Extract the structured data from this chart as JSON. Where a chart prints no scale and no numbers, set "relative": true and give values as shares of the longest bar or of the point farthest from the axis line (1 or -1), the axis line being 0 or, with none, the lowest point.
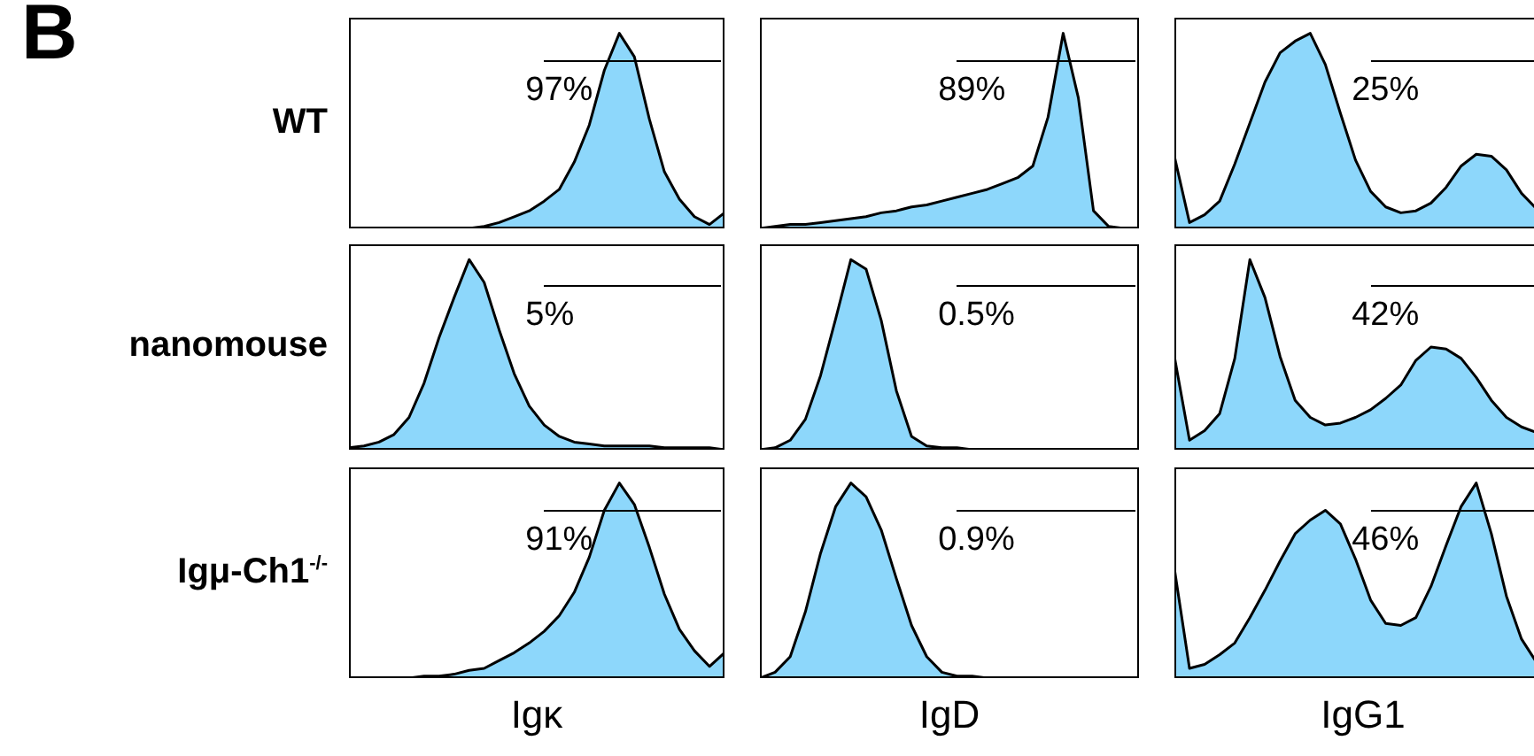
{
  "chart_data": [
    {
      "type": "area",
      "title": "B",
      "ylabel": "WT",
      "annotations": [
        "97%"
      ],
      "relative": true,
      "color": "#8dd7fb",
      "categories": [
        null,
        null,
        null,
        null,
        null,
        null,
        null,
        null,
        null,
        null,
        null,
        null,
        null,
        null,
        null,
        null,
        null,
        null,
        null,
        null,
        null,
        null,
        null,
        null,
        null,
        null
      ],
      "values": [
        0,
        0,
        0,
        0,
        0,
        0,
        0,
        0,
        0,
        0.01,
        0.03,
        0.06,
        0.09,
        0.14,
        0.2,
        0.34,
        0.53,
        0.81,
        1,
        0.88,
        0.56,
        0.29,
        0.15,
        0.06,
        0.02,
        0.08
      ]
    },
    {
      "type": "area",
      "annotations": [
        "89%"
      ],
      "relative": true,
      "color": "#8dd7fb",
      "categories": [
        null,
        null,
        null,
        null,
        null,
        null,
        null,
        null,
        null,
        null,
        null,
        null,
        null,
        null,
        null,
        null,
        null,
        null,
        null,
        null,
        null,
        null,
        null,
        null,
        null,
        null
      ],
      "values": [
        0,
        0.01,
        0.02,
        0.02,
        0.03,
        0.04,
        0.05,
        0.06,
        0.08,
        0.09,
        0.11,
        0.12,
        0.14,
        0.16,
        0.18,
        0.2,
        0.23,
        0.26,
        0.32,
        0.57,
        1,
        0.67,
        0.09,
        0.01,
        0,
        0
      ]
    },
    {
      "type": "area",
      "annotations": [
        "25%"
      ],
      "relative": true,
      "color": "#8dd7fb",
      "categories": [
        null,
        null,
        null,
        null,
        null,
        null,
        null,
        null,
        null,
        null,
        null,
        null,
        null,
        null,
        null,
        null,
        null,
        null,
        null,
        null,
        null,
        null,
        null,
        null,
        null,
        null
      ],
      "values": [
        0.37,
        0.03,
        0.07,
        0.14,
        0.33,
        0.54,
        0.75,
        0.9,
        0.96,
        1,
        0.84,
        0.59,
        0.35,
        0.19,
        0.11,
        0.08,
        0.09,
        0.13,
        0.21,
        0.32,
        0.38,
        0.37,
        0.3,
        0.18,
        0.1,
        0.03
      ]
    },
    {
      "type": "area",
      "ylabel": "nanomouse",
      "annotations": [
        "5%"
      ],
      "relative": true,
      "color": "#8dd7fb",
      "categories": [
        null,
        null,
        null,
        null,
        null,
        null,
        null,
        null,
        null,
        null,
        null,
        null,
        null,
        null,
        null,
        null,
        null,
        null,
        null,
        null,
        null,
        null,
        null,
        null,
        null,
        null
      ],
      "values": [
        0.01,
        0.02,
        0.04,
        0.08,
        0.17,
        0.35,
        0.59,
        0.8,
        1,
        0.88,
        0.63,
        0.4,
        0.23,
        0.13,
        0.07,
        0.04,
        0.03,
        0.02,
        0.02,
        0.02,
        0.02,
        0.01,
        0.01,
        0.01,
        0.01,
        0
      ]
    },
    {
      "type": "area",
      "annotations": [
        "0.5%"
      ],
      "relative": true,
      "color": "#8dd7fb",
      "categories": [
        null,
        null,
        null,
        null,
        null,
        null,
        null,
        null,
        null,
        null,
        null,
        null,
        null,
        null,
        null,
        null,
        null,
        null,
        null,
        null,
        null,
        null,
        null,
        null,
        null,
        null
      ],
      "values": [
        0,
        0.01,
        0.05,
        0.16,
        0.39,
        0.69,
        1,
        0.95,
        0.68,
        0.31,
        0.07,
        0.02,
        0.01,
        0.01,
        0,
        0,
        0,
        0,
        0,
        0,
        0,
        0,
        0,
        0,
        0,
        0
      ]
    },
    {
      "type": "area",
      "annotations": [
        "42%"
      ],
      "relative": true,
      "color": "#8dd7fb",
      "categories": [
        null,
        null,
        null,
        null,
        null,
        null,
        null,
        null,
        null,
        null,
        null,
        null,
        null,
        null,
        null,
        null,
        null,
        null,
        null,
        null,
        null,
        null,
        null,
        null,
        null,
        null
      ],
      "values": [
        0.49,
        0.05,
        0.1,
        0.19,
        0.48,
        1,
        0.8,
        0.49,
        0.26,
        0.17,
        0.13,
        0.14,
        0.17,
        0.21,
        0.27,
        0.34,
        0.47,
        0.54,
        0.53,
        0.48,
        0.38,
        0.26,
        0.17,
        0.12,
        0.09,
        0.05
      ]
    },
    {
      "type": "area",
      "ylabel": "Igμ-Ch1$^{-/-}$",
      "xlabel": "Igκ",
      "annotations": [
        "91%"
      ],
      "relative": true,
      "color": "#8dd7fb",
      "categories": [
        null,
        null,
        null,
        null,
        null,
        null,
        null,
        null,
        null,
        null,
        null,
        null,
        null,
        null,
        null,
        null,
        null,
        null,
        null,
        null,
        null,
        null,
        null,
        null,
        null,
        null
      ],
      "values": [
        0,
        0,
        0,
        0,
        0,
        0.01,
        0.01,
        0.02,
        0.04,
        0.05,
        0.09,
        0.13,
        0.18,
        0.24,
        0.32,
        0.44,
        0.62,
        0.86,
        1,
        0.89,
        0.67,
        0.43,
        0.25,
        0.14,
        0.06,
        0.13
      ]
    },
    {
      "type": "area",
      "xlabel": "IgD",
      "annotations": [
        "0.9%"
      ],
      "relative": true,
      "color": "#8dd7fb",
      "categories": [
        null,
        null,
        null,
        null,
        null,
        null,
        null,
        null,
        null,
        null,
        null,
        null,
        null,
        null,
        null,
        null,
        null,
        null,
        null,
        null,
        null,
        null,
        null,
        null,
        null,
        null
      ],
      "values": [
        0,
        0.03,
        0.11,
        0.34,
        0.64,
        0.88,
        1,
        0.93,
        0.76,
        0.51,
        0.27,
        0.11,
        0.03,
        0.01,
        0.01,
        0,
        0,
        0,
        0,
        0,
        0,
        0,
        0,
        0,
        0,
        0
      ]
    },
    {
      "type": "area",
      "xlabel": "IgG1",
      "annotations": [
        "46%"
      ],
      "relative": true,
      "color": "#8dd7fb",
      "categories": [
        null,
        null,
        null,
        null,
        null,
        null,
        null,
        null,
        null,
        null,
        null,
        null,
        null,
        null,
        null,
        null,
        null,
        null,
        null,
        null,
        null,
        null,
        null,
        null,
        null,
        null
      ],
      "values": [
        0.56,
        0.05,
        0.07,
        0.12,
        0.18,
        0.31,
        0.45,
        0.6,
        0.74,
        0.81,
        0.86,
        0.79,
        0.61,
        0.4,
        0.28,
        0.27,
        0.31,
        0.47,
        0.68,
        0.88,
        1,
        0.74,
        0.42,
        0.2,
        0.08,
        0.03
      ]
    }
  ]
}
